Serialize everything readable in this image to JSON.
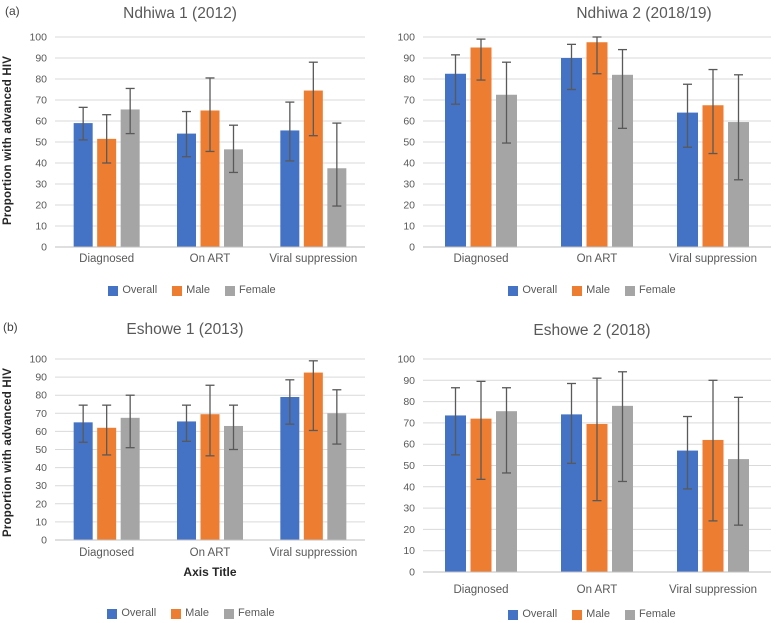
{
  "palette": {
    "overall": "#4472C4",
    "male": "#ED7D31",
    "female": "#A5A5A5",
    "error_bar": "#595959",
    "gridline": "#D9D9D9",
    "axis_line": "#BFBFBF",
    "tick_text": "#595959",
    "title_text": "#595959",
    "bold_text": "#262626"
  },
  "chart_data": [
    {
      "id": "ndhiwa-1",
      "type": "bar",
      "panel_label": "(a)",
      "title": "Ndhiwa 1 (2012)",
      "ylabel": "Proportion with advanced HIV",
      "xlabel": "",
      "ylim": [
        0,
        100
      ],
      "ytick_step": 10,
      "grid": true,
      "error_bars": true,
      "legend_position": "bottom",
      "categories": [
        "Diagnosed",
        "On ART",
        "Viral suppression"
      ],
      "series": [
        {
          "name": "Overall",
          "color": "#4472C4",
          "values": [
            59,
            54,
            55.5
          ],
          "ci_low": [
            51,
            43,
            41
          ],
          "ci_high": [
            66.5,
            64.5,
            69
          ]
        },
        {
          "name": "Male",
          "color": "#ED7D31",
          "values": [
            51.5,
            65,
            74.5
          ],
          "ci_low": [
            40,
            45.5,
            53
          ],
          "ci_high": [
            63,
            80.5,
            88
          ]
        },
        {
          "name": "Female",
          "color": "#A5A5A5",
          "values": [
            65.5,
            46.5,
            37.5
          ],
          "ci_low": [
            54,
            35.5,
            19.5
          ],
          "ci_high": [
            75.5,
            58,
            59
          ]
        }
      ]
    },
    {
      "id": "ndhiwa-2",
      "type": "bar",
      "panel_label": "",
      "title": "Ndhiwa 2 (2018/19)",
      "ylabel": "",
      "xlabel": "",
      "ylim": [
        0,
        100
      ],
      "ytick_step": 10,
      "grid": true,
      "error_bars": true,
      "legend_position": "bottom",
      "categories": [
        "Diagnosed",
        "On ART",
        "Viral suppression"
      ],
      "series": [
        {
          "name": "Overall",
          "color": "#4472C4",
          "values": [
            82.5,
            90,
            64
          ],
          "ci_low": [
            68,
            75,
            47.5
          ],
          "ci_high": [
            91.5,
            96.5,
            77.5
          ]
        },
        {
          "name": "Male",
          "color": "#ED7D31",
          "values": [
            95,
            97.5,
            67.5
          ],
          "ci_low": [
            79.5,
            82.5,
            44.5
          ],
          "ci_high": [
            99,
            100,
            84.5
          ]
        },
        {
          "name": "Female",
          "color": "#A5A5A5",
          "values": [
            72.5,
            82,
            59.5
          ],
          "ci_low": [
            49.5,
            56.5,
            32
          ],
          "ci_high": [
            88,
            94,
            82
          ]
        }
      ]
    },
    {
      "id": "eshowe-1",
      "type": "bar",
      "panel_label": "(b)",
      "title": "Eshowe 1 (2013)",
      "ylabel": "Proportion with advanced HIV",
      "xlabel": "Axis Title",
      "ylim": [
        0,
        100
      ],
      "ytick_step": 10,
      "grid": true,
      "error_bars": true,
      "legend_position": "bottom",
      "categories": [
        "Diagnosed",
        "On ART",
        "Viral suppression"
      ],
      "series": [
        {
          "name": "Overall",
          "color": "#4472C4",
          "values": [
            65,
            65.5,
            79
          ],
          "ci_low": [
            54,
            54.5,
            64
          ],
          "ci_high": [
            74.5,
            74.5,
            88.5
          ]
        },
        {
          "name": "Male",
          "color": "#ED7D31",
          "values": [
            62,
            69.5,
            92.5
          ],
          "ci_low": [
            47,
            46.5,
            60.5
          ],
          "ci_high": [
            74.5,
            85.5,
            99
          ]
        },
        {
          "name": "Female",
          "color": "#A5A5A5",
          "values": [
            67.5,
            63,
            70
          ],
          "ci_low": [
            51,
            50,
            53
          ],
          "ci_high": [
            80,
            74.5,
            83
          ]
        }
      ]
    },
    {
      "id": "eshowe-2",
      "type": "bar",
      "panel_label": "",
      "title": "Eshowe 2 (2018)",
      "ylabel": "",
      "xlabel": "",
      "ylim": [
        0,
        100
      ],
      "ytick_step": 10,
      "grid": true,
      "error_bars": true,
      "legend_position": "bottom",
      "categories": [
        "Diagnosed",
        "On ART",
        "Viral suppression"
      ],
      "series": [
        {
          "name": "Overall",
          "color": "#4472C4",
          "values": [
            73.5,
            74,
            57
          ],
          "ci_low": [
            55,
            51,
            39
          ],
          "ci_high": [
            86.5,
            88.5,
            73
          ]
        },
        {
          "name": "Male",
          "color": "#ED7D31",
          "values": [
            72,
            69.5,
            62
          ],
          "ci_low": [
            43.5,
            33.5,
            24
          ],
          "ci_high": [
            89.5,
            91,
            90
          ]
        },
        {
          "name": "Female",
          "color": "#A5A5A5",
          "values": [
            75.5,
            78,
            53
          ],
          "ci_low": [
            46.5,
            42.5,
            22
          ],
          "ci_high": [
            86.5,
            94,
            82
          ]
        }
      ]
    }
  ]
}
